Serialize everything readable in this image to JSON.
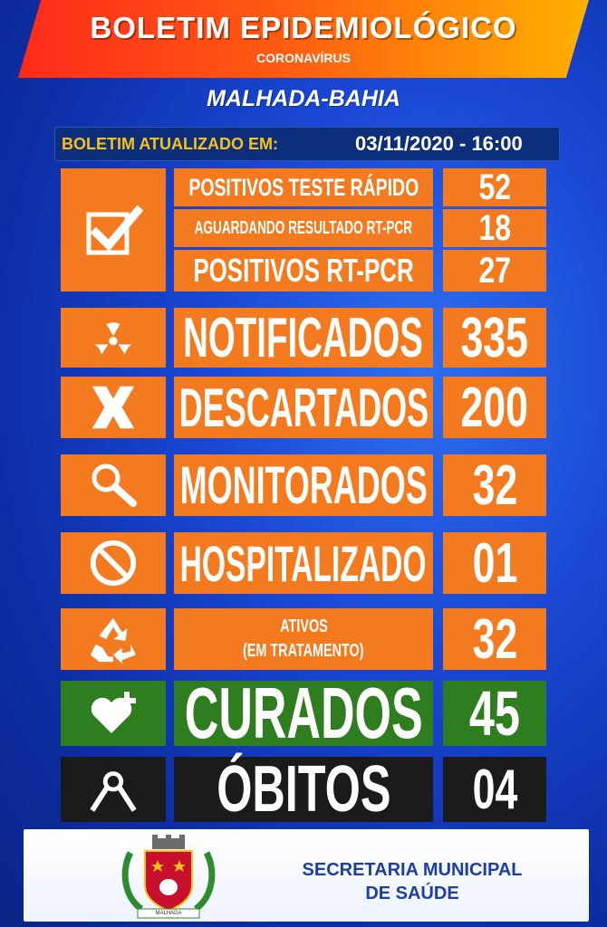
{
  "header": {
    "title": "BOLETIM EPIDEMIOLÓGICO",
    "subtitle": "CORONAVÍRUS",
    "city": "MALHADA-BAHIA"
  },
  "updated": {
    "label": "BOLETIM ATUALIZADO EM:",
    "value": "03/11/2020 - 16:00"
  },
  "tests": {
    "icon": "checkbox-icon",
    "rows": [
      {
        "label": "POSITIVOS TESTE RÁPIDO",
        "value": "52"
      },
      {
        "label": "AGUARDANDO RESULTADO RT-PCR",
        "value": "18"
      },
      {
        "label": "POSITIVOS RT-PCR",
        "value": "27"
      }
    ]
  },
  "stats": [
    {
      "id": "notificados",
      "icon": "radiation-icon",
      "label": "NOTIFICADOS",
      "value": "335"
    },
    {
      "id": "descartados",
      "icon": "x-icon",
      "label": "DESCARTADOS",
      "value": "200"
    },
    {
      "id": "monitorados",
      "icon": "magnifier-icon",
      "label": "MONITORADOS",
      "value": "32"
    },
    {
      "id": "hospitalizado",
      "icon": "prohibited-icon",
      "label": "HOSPITALIZADO",
      "value": "01"
    },
    {
      "id": "ativos",
      "icon": "recycle-icon",
      "label_line1": "ATIVOS",
      "label_line2": "(EM TRATAMENTO)",
      "value": "32"
    },
    {
      "id": "curados",
      "icon": "heart-plus-icon",
      "label": "CURADOS",
      "value": "45"
    },
    {
      "id": "obitos",
      "icon": "mourning-ribbon-icon",
      "label": "ÓBITOS",
      "value": "04"
    }
  ],
  "footer": {
    "line1": "SECRETARIA MUNICIPAL",
    "line2": "DE SAÚDE",
    "emblem_text": "MALHADA",
    "emblem_icon": "municipal-coat-of-arms-icon"
  },
  "colors": {
    "orange": "#f47a1f",
    "green": "#2e7d1f",
    "black": "#1b1b1b",
    "gold": "#f6c21a",
    "navy_text": "#1b3fa6"
  }
}
